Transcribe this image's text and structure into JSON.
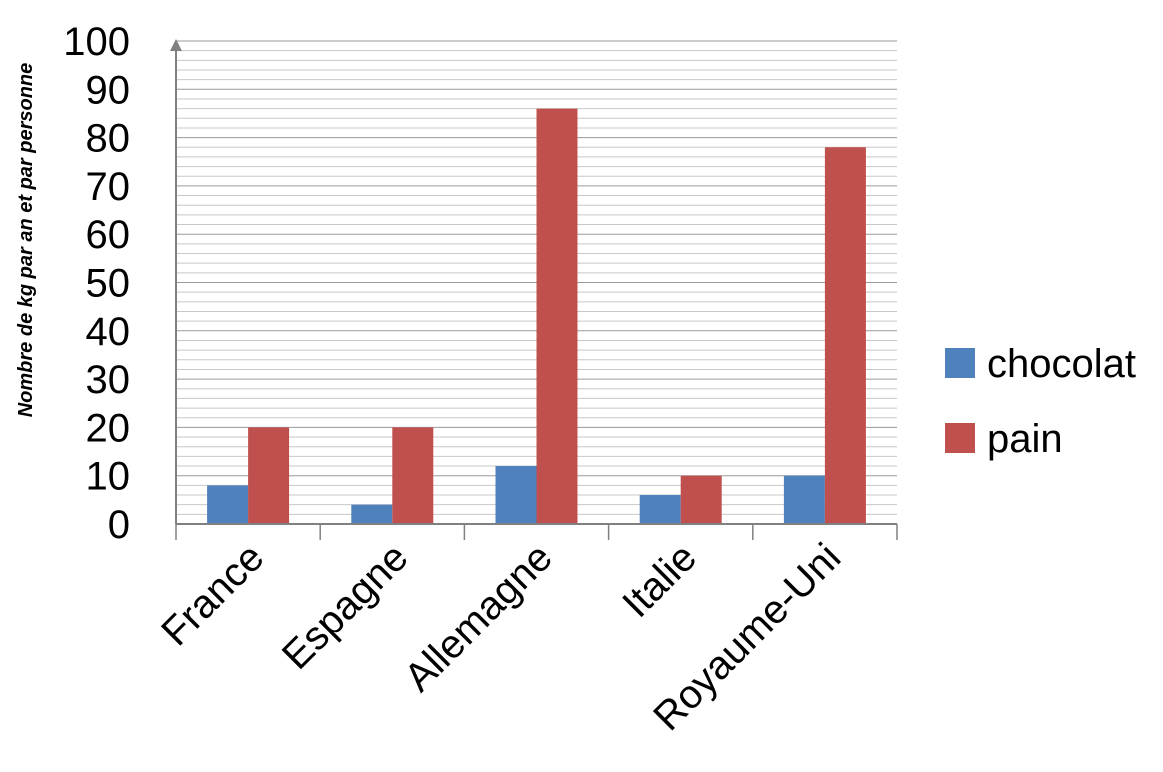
{
  "chart_data": {
    "type": "bar",
    "title": "",
    "xlabel": "",
    "ylabel": "Nombre de kg par an et par personne",
    "categories": [
      "France",
      "Espagne",
      "Allemagne",
      "Italie",
      "Royaume-Uni"
    ],
    "series": [
      {
        "name": "chocolat",
        "color": "#4F81BD",
        "values": [
          8,
          4,
          12,
          6,
          10
        ]
      },
      {
        "name": "pain",
        "color": "#C0504D",
        "values": [
          20,
          20,
          86,
          10,
          78
        ]
      }
    ],
    "ylim": [
      0,
      100
    ],
    "yticks": [
      0,
      10,
      20,
      30,
      40,
      50,
      60,
      70,
      80,
      90,
      100
    ],
    "minor_grid_step": 2,
    "grid": true,
    "legend": "right"
  }
}
